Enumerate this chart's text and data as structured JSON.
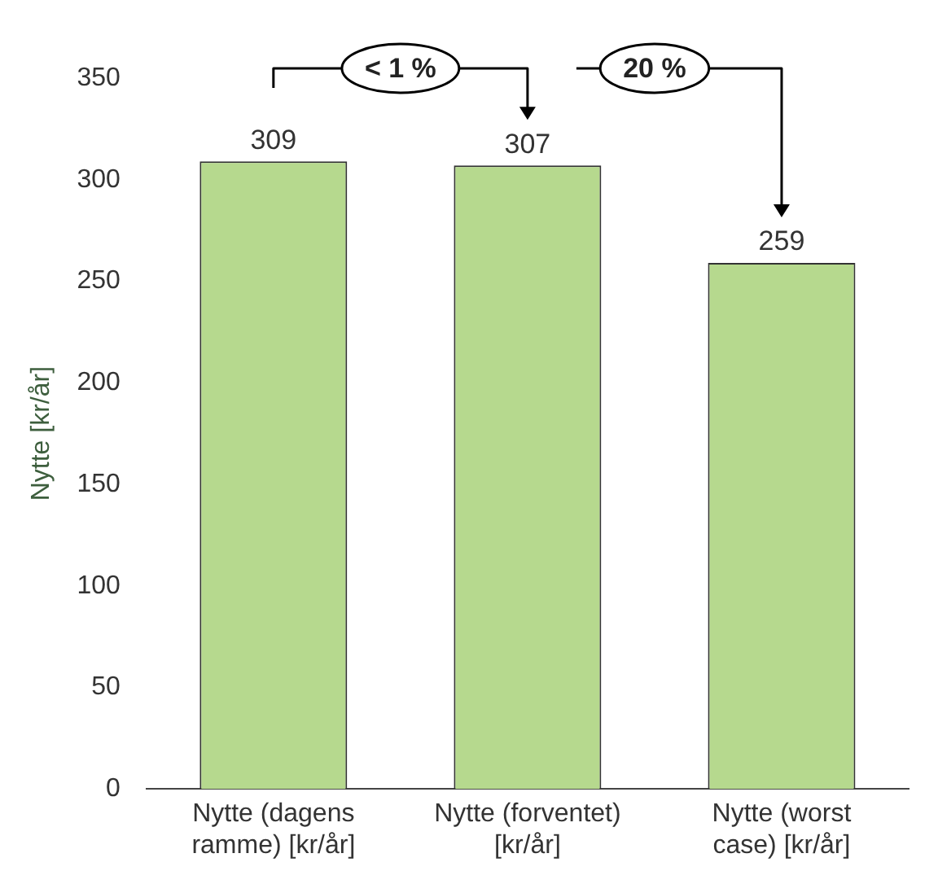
{
  "chart_data": {
    "type": "bar",
    "ylabel": "Nytte [kr/år]",
    "categories": [
      "Nytte (dagens ramme) [kr/år]",
      "Nytte (forventet) [kr/år]",
      "Nytte (worst case) [kr/år]"
    ],
    "values": [
      309,
      307,
      259
    ],
    "color": "#b6d98e",
    "ylim": [
      0,
      350
    ],
    "yticks": [
      0,
      50,
      100,
      150,
      200,
      250,
      300,
      350
    ],
    "grid": false,
    "legend": false,
    "data_labels": true,
    "annotations": [
      "< 1 %",
      "20 %"
    ]
  }
}
